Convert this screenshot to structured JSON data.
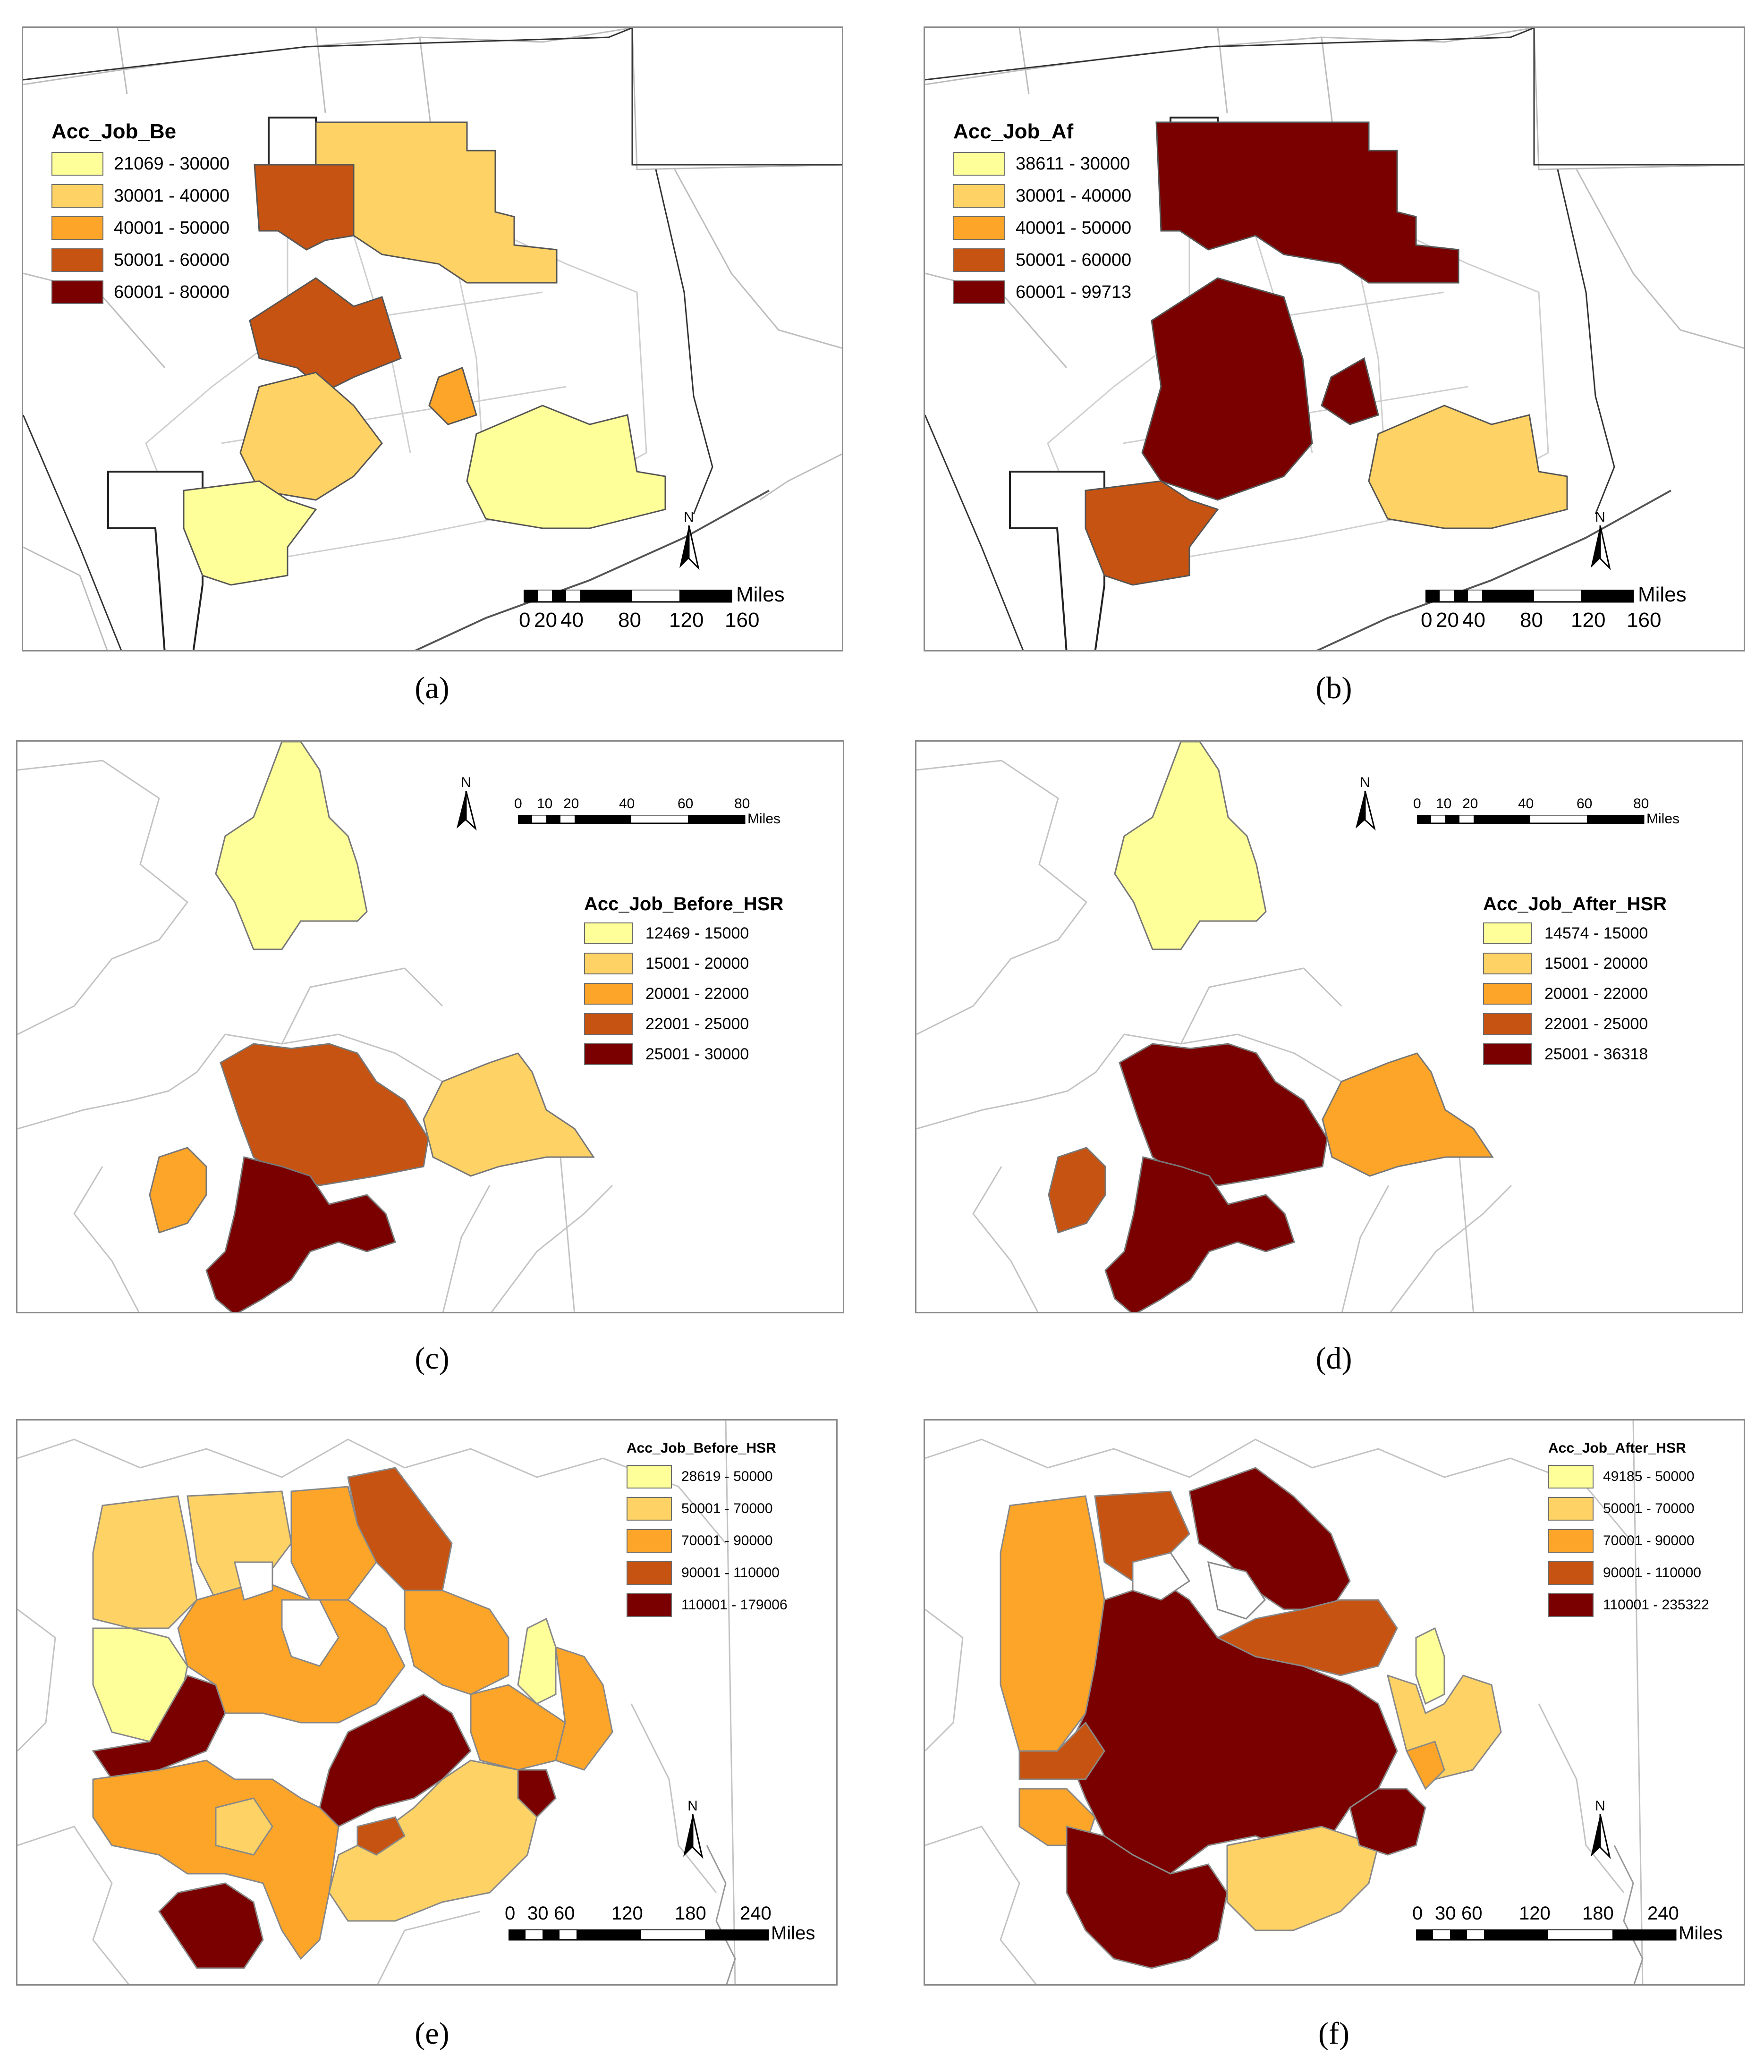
{
  "colors": {
    "class1": "#ffff99",
    "class2": "#fed264",
    "class3": "#fda529",
    "class4": "#c65311",
    "class5": "#7a0000",
    "boundary": "#b4b4b4",
    "frame": "#8c8c8c"
  },
  "panels": [
    {
      "id": "a",
      "caption": "(a)",
      "legend": {
        "title": "Acc_Job_Be",
        "classes": [
          "21069 - 30000",
          "30001 - 40000",
          "40001 - 50000",
          "50001 - 60000",
          "60001 - 80000"
        ]
      },
      "scale": {
        "ticks": [
          "0",
          "20",
          "40",
          "80",
          "120",
          "160"
        ],
        "unit": "Miles"
      },
      "north": "N"
    },
    {
      "id": "b",
      "caption": "(b)",
      "legend": {
        "title": "Acc_Job_Af",
        "classes": [
          "38611 - 30000",
          "30001 - 40000",
          "40001 - 50000",
          "50001 - 60000",
          "60001 - 99713"
        ]
      },
      "scale": {
        "ticks": [
          "0",
          "20",
          "40",
          "80",
          "120",
          "160"
        ],
        "unit": "Miles"
      },
      "north": "N"
    },
    {
      "id": "c",
      "caption": "(c)",
      "legend": {
        "title": "Acc_Job_Before_HSR",
        "classes": [
          "12469 - 15000",
          "15001 - 20000",
          "20001 - 22000",
          "22001 - 25000",
          "25001 - 30000"
        ]
      },
      "scale": {
        "ticks": [
          "0",
          "10",
          "20",
          "40",
          "60",
          "80"
        ],
        "unit": "Miles"
      },
      "north": "N"
    },
    {
      "id": "d",
      "caption": "(d)",
      "legend": {
        "title": "Acc_Job_After_HSR",
        "classes": [
          "14574 - 15000",
          "15001 - 20000",
          "20001 - 22000",
          "22001 - 25000",
          "25001 - 36318"
        ]
      },
      "scale": {
        "ticks": [
          "0",
          "10",
          "20",
          "40",
          "60",
          "80"
        ],
        "unit": "Miles"
      },
      "north": "N"
    },
    {
      "id": "e",
      "caption": "(e)",
      "legend": {
        "title": "Acc_Job_Before_HSR",
        "classes": [
          "28619 - 50000",
          "50001 - 70000",
          "70001 - 90000",
          "90001 - 110000",
          "110001 - 179006"
        ]
      },
      "scale": {
        "ticks": [
          "0",
          "30",
          "60",
          "120",
          "180",
          "240"
        ],
        "unit": "Miles"
      },
      "north": "N"
    },
    {
      "id": "f",
      "caption": "(f)",
      "legend": {
        "title": "Acc_Job_After_HSR",
        "classes": [
          "49185 - 50000",
          "50001 - 70000",
          "70001 - 90000",
          "90001 - 110000",
          "110001 - 235322"
        ]
      },
      "scale": {
        "ticks": [
          "0",
          "30",
          "60",
          "120",
          "180",
          "240"
        ],
        "unit": "Miles"
      },
      "north": "N"
    }
  ]
}
